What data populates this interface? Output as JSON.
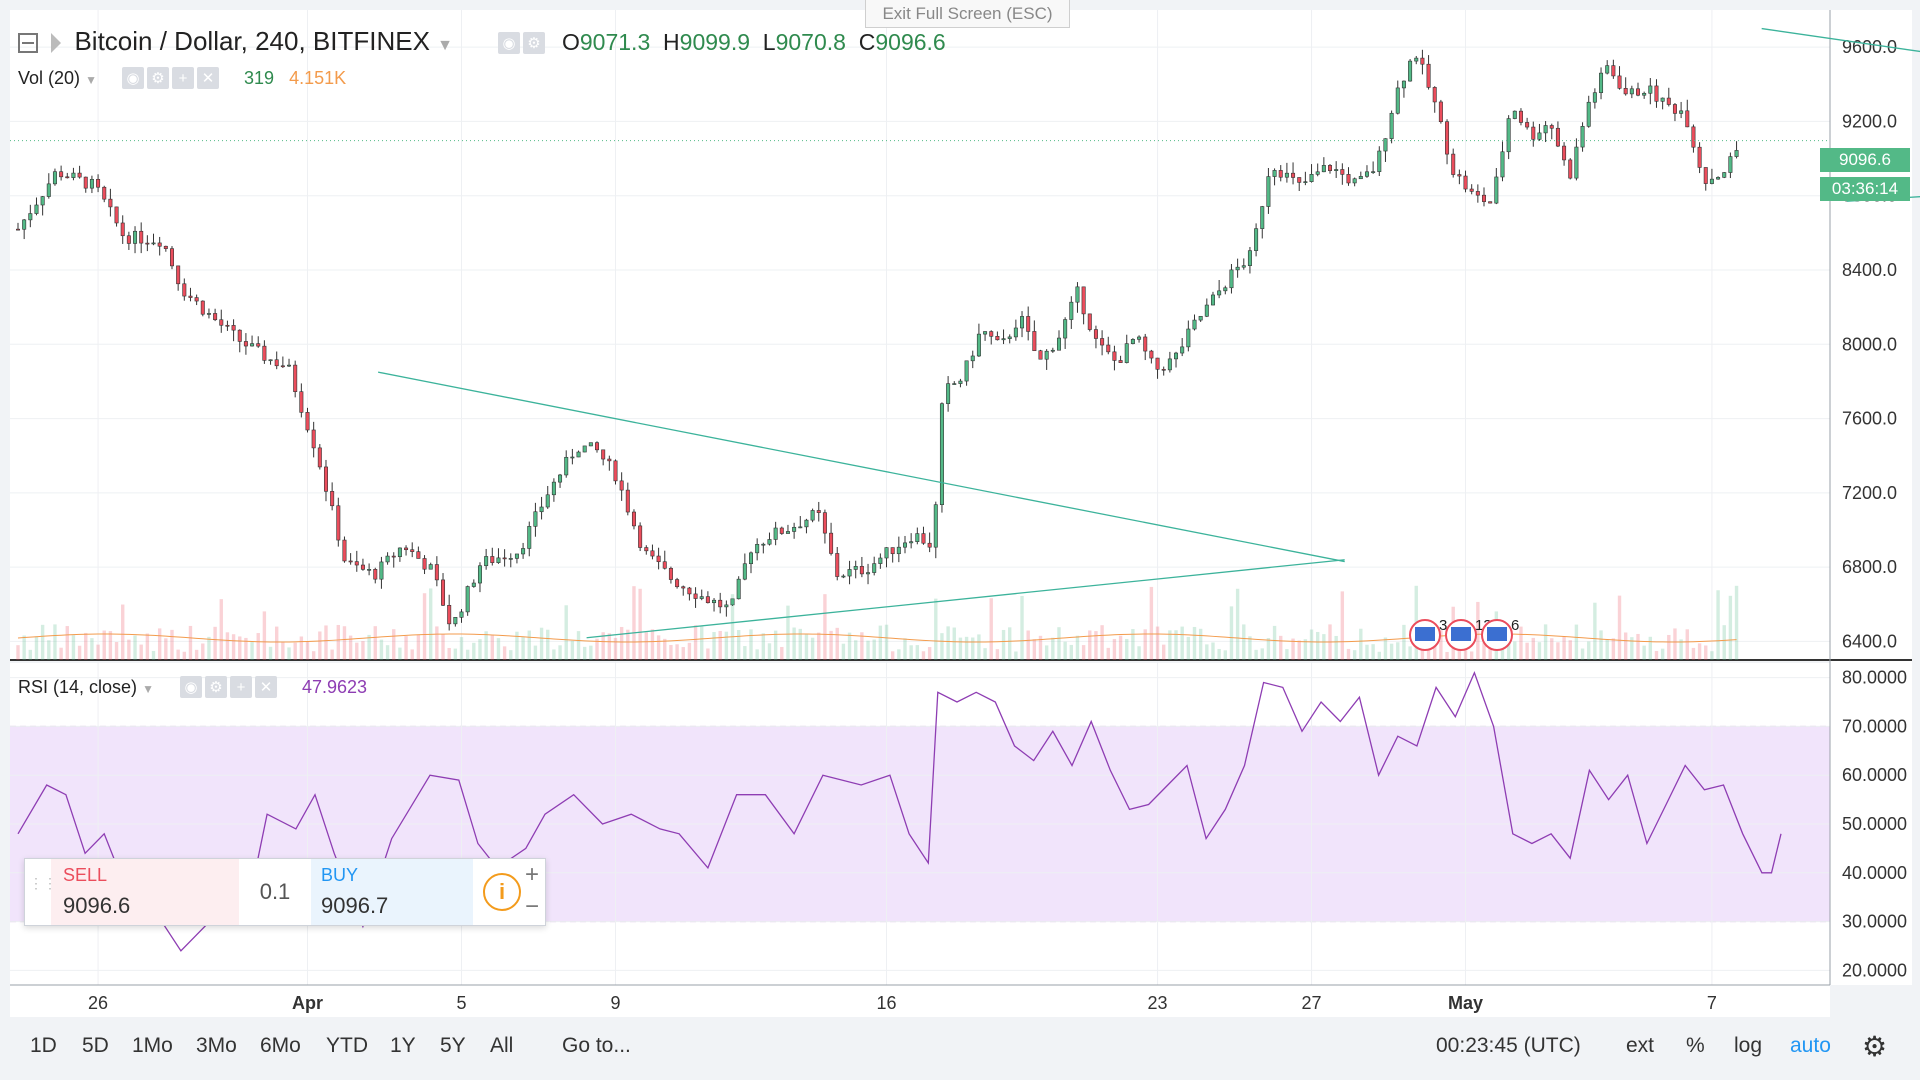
{
  "window": {
    "exit_fullscreen_label": "Exit Full Screen (ESC)"
  },
  "header": {
    "symbol": "Bitcoin / Dollar, 240, BITFINEX",
    "ohlc": {
      "o_label": "O",
      "o": "9071.3",
      "h_label": "H",
      "h": "9099.9",
      "l_label": "L",
      "l": "9070.8",
      "c_label": "C",
      "c": "9096.6"
    },
    "vol_label": "Vol (20)",
    "vol_value": "319",
    "vol_ma": "4.151K"
  },
  "price_labels": {
    "last": "9096.6",
    "countdown": "03:36:14"
  },
  "rsi": {
    "label": "RSI (14, close)",
    "value": "47.9623"
  },
  "events": [
    "3",
    "13",
    "6"
  ],
  "trade_panel": {
    "sell_label": "SELL",
    "sell_price": "9096.6",
    "qty": "0.1",
    "buy_label": "BUY",
    "buy_price": "9096.7"
  },
  "toolbar": {
    "ranges": [
      "1D",
      "5D",
      "1Mo",
      "3Mo",
      "6Mo",
      "YTD",
      "1Y",
      "5Y",
      "All"
    ],
    "goto": "Go to...",
    "clock": "00:23:45 (UTC)",
    "ext": "ext",
    "percent": "%",
    "log": "log",
    "auto": "auto"
  },
  "colors": {
    "up": "#53b987",
    "down": "#eb4d5c",
    "trend": "#3cb39b",
    "rsi": "#8e3db3",
    "rsi_band": "#f1e4fb",
    "volume_ma": "#f39b4c"
  },
  "chart_data": [
    {
      "type": "candlestick",
      "title": "Bitcoin / Dollar, 240, BITFINEX",
      "ylim": [
        6300,
        9800
      ],
      "y_ticks": [
        "6400.0",
        "6800.0",
        "7200.0",
        "7600.0",
        "8000.0",
        "8400.0",
        "8800.0",
        "9200.0",
        "9600.0"
      ],
      "x_ticks": [
        "26",
        "Apr",
        "5",
        "9",
        "16",
        "23",
        "27",
        "May",
        "7"
      ],
      "last_price": 9096.6,
      "close_path": [
        [
          0,
          8620
        ],
        [
          8,
          8930
        ],
        [
          16,
          8850
        ],
        [
          22,
          8580
        ],
        [
          30,
          8560
        ],
        [
          34,
          8300
        ],
        [
          40,
          8150
        ],
        [
          46,
          8020
        ],
        [
          52,
          7920
        ],
        [
          56,
          7880
        ],
        [
          62,
          7420
        ],
        [
          68,
          6820
        ],
        [
          74,
          6760
        ],
        [
          80,
          6920
        ],
        [
          86,
          6780
        ],
        [
          90,
          6470
        ],
        [
          96,
          6820
        ],
        [
          104,
          6890
        ],
        [
          110,
          7200
        ],
        [
          116,
          7450
        ],
        [
          120,
          7430
        ],
        [
          124,
          7300
        ],
        [
          130,
          6880
        ],
        [
          136,
          6730
        ],
        [
          142,
          6640
        ],
        [
          148,
          6570
        ],
        [
          152,
          6900
        ],
        [
          156,
          6970
        ],
        [
          160,
          7010
        ],
        [
          166,
          7090
        ],
        [
          170,
          6760
        ],
        [
          176,
          6790
        ],
        [
          180,
          6870
        ],
        [
          186,
          6980
        ],
        [
          190,
          6910
        ],
        [
          192,
          7740
        ],
        [
          196,
          7820
        ],
        [
          200,
          8080
        ],
        [
          204,
          7980
        ],
        [
          208,
          8150
        ],
        [
          212,
          7900
        ],
        [
          216,
          8040
        ],
        [
          220,
          8280
        ],
        [
          224,
          8000
        ],
        [
          228,
          7900
        ],
        [
          232,
          8040
        ],
        [
          236,
          7860
        ],
        [
          240,
          7920
        ],
        [
          244,
          8100
        ],
        [
          248,
          8240
        ],
        [
          252,
          8380
        ],
        [
          256,
          8480
        ],
        [
          260,
          8980
        ],
        [
          266,
          8850
        ],
        [
          272,
          8960
        ],
        [
          278,
          8860
        ],
        [
          282,
          8960
        ],
        [
          286,
          9350
        ],
        [
          290,
          9580
        ],
        [
          294,
          9300
        ],
        [
          298,
          8930
        ],
        [
          302,
          8800
        ],
        [
          306,
          8760
        ],
        [
          310,
          9300
        ],
        [
          314,
          9120
        ],
        [
          318,
          9200
        ],
        [
          322,
          8900
        ],
        [
          326,
          9300
        ],
        [
          330,
          9500
        ],
        [
          334,
          9340
        ],
        [
          338,
          9380
        ],
        [
          342,
          9290
        ],
        [
          346,
          9250
        ],
        [
          350,
          8880
        ],
        [
          354,
          8930
        ],
        [
          358,
          9096.6
        ]
      ],
      "x_tick_pos": {
        "26": 13,
        "Apr": 47,
        "5": 72,
        "9": 97,
        "16": 141,
        "23": 185,
        "27": 210,
        "May": 235,
        "7": 275
      }
    },
    {
      "type": "line",
      "title": "RSI (14, close)",
      "ylim": [
        17,
        83
      ],
      "y_ticks": [
        "20.0000",
        "30.0000",
        "40.0000",
        "50.0000",
        "60.0000",
        "70.0000",
        "80.0000"
      ],
      "band": [
        30,
        70
      ],
      "values": [
        [
          0,
          48
        ],
        [
          6,
          58
        ],
        [
          10,
          56
        ],
        [
          14,
          44
        ],
        [
          18,
          48
        ],
        [
          22,
          38
        ],
        [
          28,
          33
        ],
        [
          34,
          24
        ],
        [
          40,
          30
        ],
        [
          48,
          33
        ],
        [
          52,
          52
        ],
        [
          58,
          49
        ],
        [
          62,
          56
        ],
        [
          66,
          44
        ],
        [
          72,
          29
        ],
        [
          78,
          47
        ],
        [
          86,
          60
        ],
        [
          92,
          59
        ],
        [
          96,
          46
        ],
        [
          100,
          41
        ],
        [
          106,
          45
        ],
        [
          110,
          52
        ],
        [
          116,
          56
        ],
        [
          122,
          50
        ],
        [
          128,
          52
        ],
        [
          134,
          49
        ],
        [
          138,
          48
        ],
        [
          144,
          41
        ],
        [
          150,
          56
        ],
        [
          156,
          56
        ],
        [
          162,
          48
        ],
        [
          168,
          60
        ],
        [
          176,
          58
        ],
        [
          182,
          60
        ],
        [
          186,
          48
        ],
        [
          190,
          42
        ],
        [
          192,
          77
        ],
        [
          196,
          75
        ],
        [
          200,
          77
        ],
        [
          204,
          75
        ],
        [
          208,
          66
        ],
        [
          212,
          63
        ],
        [
          216,
          69
        ],
        [
          220,
          62
        ],
        [
          224,
          71
        ],
        [
          228,
          61
        ],
        [
          232,
          53
        ],
        [
          236,
          54
        ],
        [
          240,
          58
        ],
        [
          244,
          62
        ],
        [
          248,
          47
        ],
        [
          252,
          53
        ],
        [
          256,
          62
        ],
        [
          260,
          79
        ],
        [
          264,
          78
        ],
        [
          268,
          69
        ],
        [
          272,
          75
        ],
        [
          276,
          71
        ],
        [
          280,
          76
        ],
        [
          284,
          60
        ],
        [
          288,
          68
        ],
        [
          292,
          66
        ],
        [
          296,
          78
        ],
        [
          300,
          72
        ],
        [
          304,
          81
        ],
        [
          308,
          70
        ],
        [
          312,
          48
        ],
        [
          316,
          46
        ],
        [
          320,
          48
        ],
        [
          324,
          43
        ],
        [
          328,
          61
        ],
        [
          332,
          55
        ],
        [
          336,
          60
        ],
        [
          340,
          46
        ],
        [
          344,
          54
        ],
        [
          348,
          62
        ],
        [
          352,
          57
        ],
        [
          356,
          58
        ],
        [
          360,
          48
        ],
        [
          364,
          40
        ],
        [
          366,
          40
        ],
        [
          368,
          48
        ]
      ]
    }
  ]
}
